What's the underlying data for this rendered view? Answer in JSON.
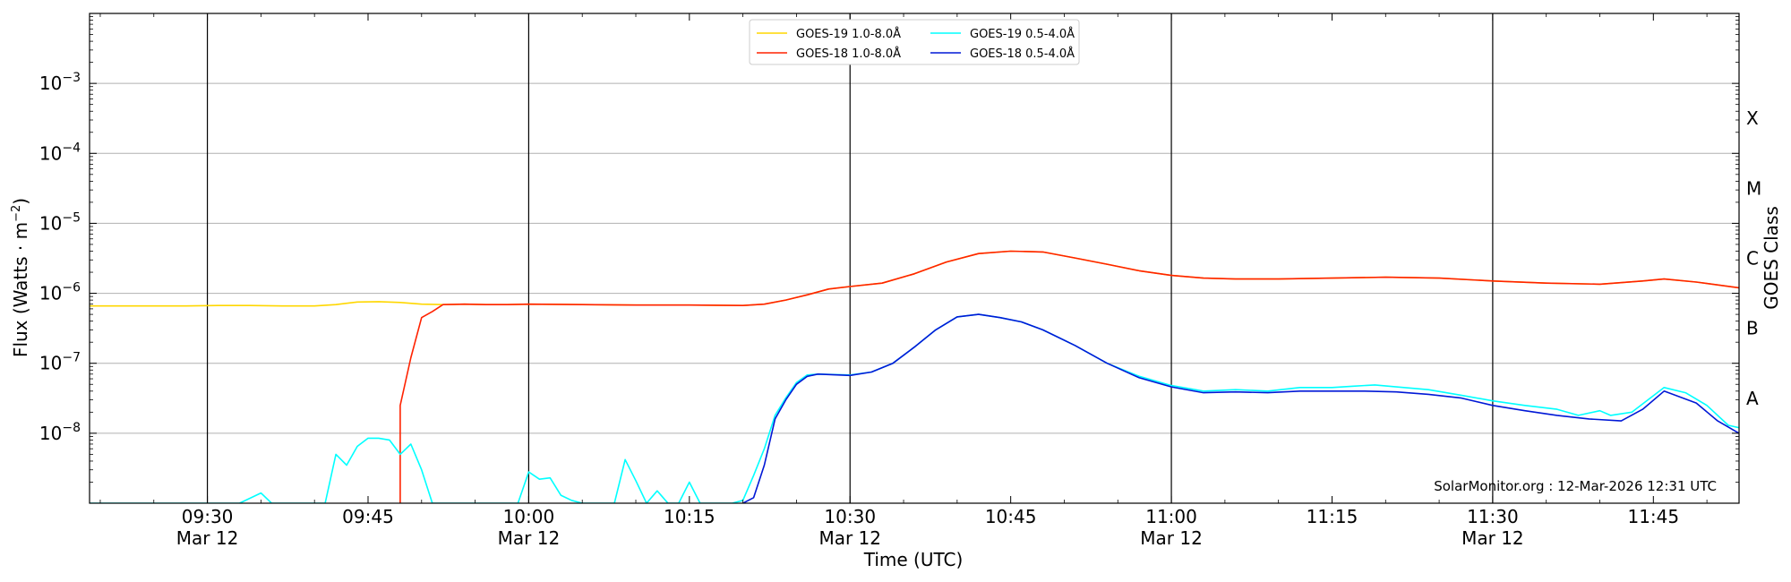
{
  "chart_data": {
    "type": "line",
    "xlabel": "Time (UTC)",
    "ylabel": "Flux (Watts · m",
    "ylabel_sup": "−2",
    "ylabel_end": ")",
    "y2label": "GOES Class",
    "yscale": "log",
    "xlim": [
      "09:19",
      "11:53"
    ],
    "ylim": [
      1e-09,
      0.01
    ],
    "grid": "horizontal",
    "legend_position": "top-center",
    "credit": "SolarMonitor.org : 12-Mar-2026 12:31 UTC",
    "y_ticks": [
      {
        "base": "10",
        "exp": "−8",
        "value": 1e-08
      },
      {
        "base": "10",
        "exp": "−7",
        "value": 1e-07
      },
      {
        "base": "10",
        "exp": "−6",
        "value": 1e-06
      },
      {
        "base": "10",
        "exp": "−5",
        "value": 1e-05
      },
      {
        "base": "10",
        "exp": "−4",
        "value": 0.0001
      },
      {
        "base": "10",
        "exp": "−3",
        "value": 0.001
      }
    ],
    "x_ticks": [
      {
        "time": "09:30",
        "date": "Mar 12",
        "major": true
      },
      {
        "time": "09:45",
        "date": "",
        "major": false
      },
      {
        "time": "10:00",
        "date": "Mar 12",
        "major": true
      },
      {
        "time": "10:15",
        "date": "",
        "major": false
      },
      {
        "time": "10:30",
        "date": "Mar 12",
        "major": true
      },
      {
        "time": "10:45",
        "date": "",
        "major": false
      },
      {
        "time": "11:00",
        "date": "Mar 12",
        "major": true
      },
      {
        "time": "11:15",
        "date": "",
        "major": false
      },
      {
        "time": "11:30",
        "date": "Mar 12",
        "major": true
      },
      {
        "time": "11:45",
        "date": "",
        "major": false
      }
    ],
    "goes_classes": [
      {
        "label": "A",
        "value": 3.16e-08
      },
      {
        "label": "B",
        "value": 3.16e-07
      },
      {
        "label": "C",
        "value": 3.16e-06
      },
      {
        "label": "M",
        "value": 3.16e-05
      },
      {
        "label": "X",
        "value": 0.000316
      }
    ],
    "series": [
      {
        "name": "GOES-19 1.0-8.0Å",
        "color": "#ffd700",
        "points": [
          [
            "09:19",
            6.6e-07
          ],
          [
            "09:22",
            6.6e-07
          ],
          [
            "09:25",
            6.6e-07
          ],
          [
            "09:28",
            6.6e-07
          ],
          [
            "09:31",
            6.7e-07
          ],
          [
            "09:34",
            6.7e-07
          ],
          [
            "09:37",
            6.6e-07
          ],
          [
            "09:40",
            6.6e-07
          ],
          [
            "09:42",
            6.9e-07
          ],
          [
            "09:44",
            7.5e-07
          ],
          [
            "09:46",
            7.6e-07
          ],
          [
            "09:48",
            7.4e-07
          ],
          [
            "09:50",
            7e-07
          ],
          [
            "09:52",
            6.9e-07
          ],
          [
            "09:54",
            7e-07
          ],
          [
            "09:56",
            6.9e-07
          ],
          [
            "09:58",
            6.9e-07
          ],
          [
            "10:00",
            7e-07
          ],
          [
            "10:05",
            6.9e-07
          ],
          [
            "10:10",
            6.8e-07
          ],
          [
            "10:15",
            6.8e-07
          ],
          [
            "10:20",
            6.7e-07
          ],
          [
            "10:22",
            7e-07
          ],
          [
            "10:24",
            8e-07
          ],
          [
            "10:26",
            9.5e-07
          ],
          [
            "10:28",
            1.15e-06
          ],
          [
            "10:30",
            1.25e-06
          ],
          [
            "10:33",
            1.4e-06
          ],
          [
            "10:36",
            1.9e-06
          ],
          [
            "10:39",
            2.8e-06
          ],
          [
            "10:42",
            3.7e-06
          ],
          [
            "10:45",
            4e-06
          ],
          [
            "10:48",
            3.9e-06
          ],
          [
            "10:51",
            3.2e-06
          ],
          [
            "10:54",
            2.6e-06
          ],
          [
            "10:57",
            2.1e-06
          ],
          [
            "11:00",
            1.8e-06
          ],
          [
            "11:03",
            1.65e-06
          ],
          [
            "11:06",
            1.6e-06
          ],
          [
            "11:10",
            1.6e-06
          ],
          [
            "11:15",
            1.65e-06
          ],
          [
            "11:20",
            1.7e-06
          ],
          [
            "11:25",
            1.65e-06
          ],
          [
            "11:30",
            1.5e-06
          ],
          [
            "11:35",
            1.4e-06
          ],
          [
            "11:40",
            1.35e-06
          ],
          [
            "11:44",
            1.5e-06
          ],
          [
            "11:46",
            1.6e-06
          ],
          [
            "11:49",
            1.45e-06
          ],
          [
            "11:53",
            1.2e-06
          ]
        ]
      },
      {
        "name": "GOES-18 1.0-8.0Å",
        "color": "#ff2200",
        "points": [
          [
            "09:48",
            1e-09
          ],
          [
            "09:48",
            2.5e-08
          ],
          [
            "09:49",
            1.2e-07
          ],
          [
            "09:50",
            4.5e-07
          ],
          [
            "09:51",
            5.5e-07
          ],
          [
            "09:52",
            6.9e-07
          ],
          [
            "09:54",
            7e-07
          ],
          [
            "09:56",
            6.9e-07
          ],
          [
            "09:58",
            6.9e-07
          ],
          [
            "10:00",
            7e-07
          ],
          [
            "10:05",
            6.9e-07
          ],
          [
            "10:10",
            6.8e-07
          ],
          [
            "10:15",
            6.8e-07
          ],
          [
            "10:20",
            6.7e-07
          ],
          [
            "10:22",
            7e-07
          ],
          [
            "10:24",
            8e-07
          ],
          [
            "10:26",
            9.5e-07
          ],
          [
            "10:28",
            1.15e-06
          ],
          [
            "10:30",
            1.25e-06
          ],
          [
            "10:33",
            1.4e-06
          ],
          [
            "10:36",
            1.9e-06
          ],
          [
            "10:39",
            2.8e-06
          ],
          [
            "10:42",
            3.7e-06
          ],
          [
            "10:45",
            4e-06
          ],
          [
            "10:48",
            3.9e-06
          ],
          [
            "10:51",
            3.2e-06
          ],
          [
            "10:54",
            2.6e-06
          ],
          [
            "10:57",
            2.1e-06
          ],
          [
            "11:00",
            1.8e-06
          ],
          [
            "11:03",
            1.65e-06
          ],
          [
            "11:06",
            1.6e-06
          ],
          [
            "11:10",
            1.6e-06
          ],
          [
            "11:15",
            1.65e-06
          ],
          [
            "11:20",
            1.7e-06
          ],
          [
            "11:25",
            1.65e-06
          ],
          [
            "11:30",
            1.5e-06
          ],
          [
            "11:35",
            1.4e-06
          ],
          [
            "11:40",
            1.35e-06
          ],
          [
            "11:44",
            1.5e-06
          ],
          [
            "11:46",
            1.6e-06
          ],
          [
            "11:49",
            1.45e-06
          ],
          [
            "11:53",
            1.2e-06
          ]
        ]
      },
      {
        "name": "GOES-19 0.5-4.0Å",
        "color": "#00ffff",
        "points": [
          [
            "09:19",
            1e-09
          ],
          [
            "09:33",
            1e-09
          ],
          [
            "09:35",
            1.4e-09
          ],
          [
            "09:36",
            1e-09
          ],
          [
            "09:41",
            1e-09
          ],
          [
            "09:42",
            5e-09
          ],
          [
            "09:43",
            3.5e-09
          ],
          [
            "09:44",
            6.5e-09
          ],
          [
            "09:45",
            8.5e-09
          ],
          [
            "09:46",
            8.5e-09
          ],
          [
            "09:47",
            8e-09
          ],
          [
            "09:48",
            5e-09
          ],
          [
            "09:49",
            7e-09
          ],
          [
            "09:50",
            3e-09
          ],
          [
            "09:51",
            1e-09
          ],
          [
            "09:59",
            1e-09
          ],
          [
            "10:00",
            2.8e-09
          ],
          [
            "10:01",
            2.2e-09
          ],
          [
            "10:02",
            2.3e-09
          ],
          [
            "10:03",
            1.3e-09
          ],
          [
            "10:04",
            1.1e-09
          ],
          [
            "10:05",
            1e-09
          ],
          [
            "10:08",
            1e-09
          ],
          [
            "10:09",
            4.2e-09
          ],
          [
            "10:10",
            2.1e-09
          ],
          [
            "10:11",
            1e-09
          ],
          [
            "10:12",
            1.5e-09
          ],
          [
            "10:13",
            1e-09
          ],
          [
            "10:14",
            1e-09
          ],
          [
            "10:15",
            2e-09
          ],
          [
            "10:16",
            1e-09
          ],
          [
            "10:19",
            1e-09
          ],
          [
            "10:20",
            1.1e-09
          ],
          [
            "10:21",
            2.5e-09
          ],
          [
            "10:22",
            6e-09
          ],
          [
            "10:23",
            1.8e-08
          ],
          [
            "10:24",
            3.2e-08
          ],
          [
            "10:25",
            5.3e-08
          ],
          [
            "10:26",
            6.8e-08
          ],
          [
            "10:27",
            7e-08
          ],
          [
            "10:30",
            6.8e-08
          ],
          [
            "10:32",
            7.5e-08
          ],
          [
            "10:34",
            1e-07
          ],
          [
            "10:36",
            1.7e-07
          ],
          [
            "10:38",
            3e-07
          ],
          [
            "10:40",
            4.6e-07
          ],
          [
            "10:42",
            5e-07
          ],
          [
            "10:44",
            4.5e-07
          ],
          [
            "10:46",
            3.9e-07
          ],
          [
            "10:48",
            3e-07
          ],
          [
            "10:51",
            1.8e-07
          ],
          [
            "10:54",
            1e-07
          ],
          [
            "10:57",
            6.5e-08
          ],
          [
            "11:00",
            4.8e-08
          ],
          [
            "11:03",
            4e-08
          ],
          [
            "11:06",
            4.2e-08
          ],
          [
            "11:09",
            4e-08
          ],
          [
            "11:12",
            4.5e-08
          ],
          [
            "11:15",
            4.5e-08
          ],
          [
            "11:17",
            4.7e-08
          ],
          [
            "11:19",
            4.9e-08
          ],
          [
            "11:21",
            4.6e-08
          ],
          [
            "11:24",
            4.2e-08
          ],
          [
            "11:27",
            3.5e-08
          ],
          [
            "11:30",
            2.9e-08
          ],
          [
            "11:33",
            2.5e-08
          ],
          [
            "11:36",
            2.2e-08
          ],
          [
            "11:38",
            1.8e-08
          ],
          [
            "11:40",
            2.1e-08
          ],
          [
            "11:41",
            1.8e-08
          ],
          [
            "11:43",
            2e-08
          ],
          [
            "11:46",
            4.5e-08
          ],
          [
            "11:48",
            3.8e-08
          ],
          [
            "11:50",
            2.5e-08
          ],
          [
            "11:52",
            1.3e-08
          ],
          [
            "11:53",
            1.2e-08
          ]
        ]
      },
      {
        "name": "GOES-18 0.5-4.0Å",
        "color": "#0018d6",
        "points": [
          [
            "10:20",
            1e-09
          ],
          [
            "10:21",
            1.2e-09
          ],
          [
            "10:22",
            3.5e-09
          ],
          [
            "10:23",
            1.6e-08
          ],
          [
            "10:24",
            3e-08
          ],
          [
            "10:25",
            5e-08
          ],
          [
            "10:26",
            6.5e-08
          ],
          [
            "10:27",
            7e-08
          ],
          [
            "10:30",
            6.7e-08
          ],
          [
            "10:32",
            7.5e-08
          ],
          [
            "10:34",
            1e-07
          ],
          [
            "10:36",
            1.7e-07
          ],
          [
            "10:38",
            3e-07
          ],
          [
            "10:40",
            4.6e-07
          ],
          [
            "10:42",
            5e-07
          ],
          [
            "10:44",
            4.5e-07
          ],
          [
            "10:46",
            3.9e-07
          ],
          [
            "10:48",
            3e-07
          ],
          [
            "10:51",
            1.8e-07
          ],
          [
            "10:54",
            1e-07
          ],
          [
            "10:57",
            6.2e-08
          ],
          [
            "11:00",
            4.6e-08
          ],
          [
            "11:03",
            3.8e-08
          ],
          [
            "11:06",
            3.9e-08
          ],
          [
            "11:09",
            3.8e-08
          ],
          [
            "11:12",
            4e-08
          ],
          [
            "11:15",
            4e-08
          ],
          [
            "11:18",
            4e-08
          ],
          [
            "11:21",
            3.9e-08
          ],
          [
            "11:24",
            3.6e-08
          ],
          [
            "11:27",
            3.2e-08
          ],
          [
            "11:30",
            2.5e-08
          ],
          [
            "11:33",
            2.1e-08
          ],
          [
            "11:36",
            1.8e-08
          ],
          [
            "11:39",
            1.6e-08
          ],
          [
            "11:42",
            1.5e-08
          ],
          [
            "11:44",
            2.2e-08
          ],
          [
            "11:46",
            4e-08
          ],
          [
            "11:49",
            2.7e-08
          ],
          [
            "11:51",
            1.5e-08
          ],
          [
            "11:53",
            1e-08
          ]
        ]
      }
    ]
  }
}
